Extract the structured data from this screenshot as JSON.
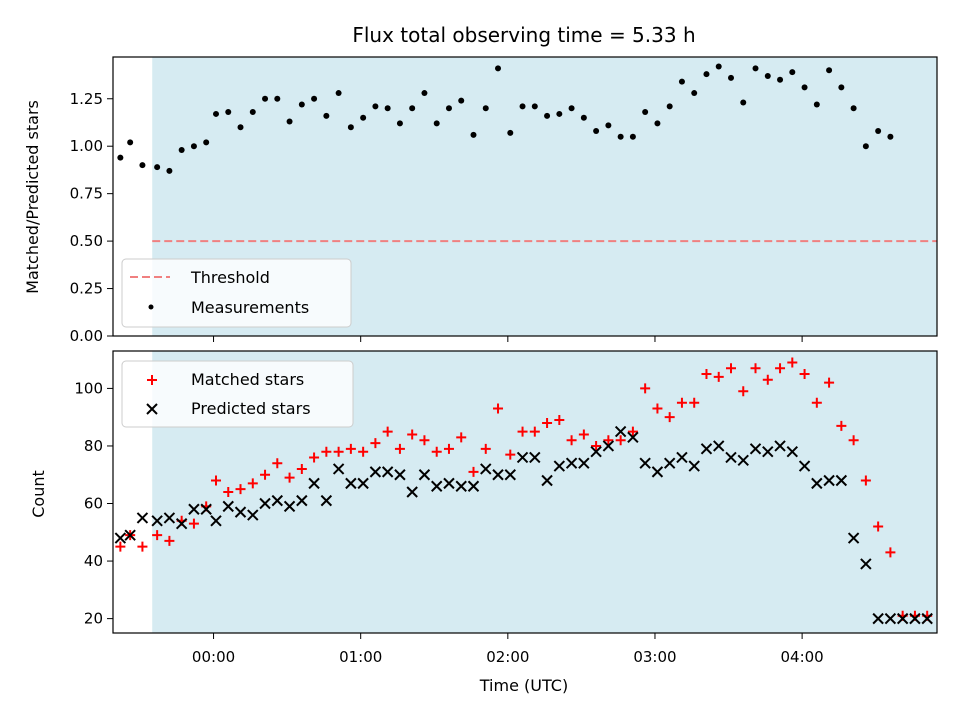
{
  "chart_data": [
    {
      "type": "scatter",
      "title": "Flux total observing time = 5.33 h",
      "xlabel": "",
      "ylabel": "Matched/Predicted stars",
      "ylim": [
        0,
        1.47
      ],
      "xlim": [
        -0.6833,
        4.9167
      ],
      "y_ticks": [
        0.0,
        0.25,
        0.5,
        0.75,
        1.0,
        1.25
      ],
      "y_tick_labels": [
        "0.00",
        "0.25",
        "0.50",
        "0.75",
        "1.00",
        "1.25"
      ],
      "observing_window": [
        -0.4167,
        4.9167
      ],
      "threshold": 0.5,
      "legend": [
        "Threshold",
        "Measurements"
      ],
      "legend_position": "lower-left",
      "colors": {
        "span": "#add8e6",
        "threshold": "#f08080",
        "points": "#000000"
      },
      "x": [
        -0.6333,
        -0.5667,
        -0.4833,
        -0.3833,
        -0.3,
        -0.2167,
        -0.1333,
        -0.05,
        0.0167,
        0.1,
        0.1833,
        0.2667,
        0.35,
        0.4333,
        0.5167,
        0.6,
        0.6833,
        0.7667,
        0.85,
        0.9333,
        1.0167,
        1.1,
        1.1833,
        1.2667,
        1.35,
        1.4333,
        1.5167,
        1.6,
        1.6833,
        1.7667,
        1.85,
        1.9333,
        2.0167,
        2.1,
        2.1833,
        2.2667,
        2.35,
        2.4333,
        2.5167,
        2.6,
        2.6833,
        2.7667,
        2.85,
        2.9333,
        3.0167,
        3.1,
        3.1833,
        3.2667,
        3.35,
        3.4333,
        3.5167,
        3.6,
        3.6833,
        3.7667,
        3.85,
        3.9333,
        4.0167,
        4.1,
        4.1833,
        4.2667,
        4.35,
        4.4333,
        4.5167,
        4.6
      ],
      "values": [
        0.94,
        1.02,
        0.9,
        0.89,
        0.87,
        0.98,
        1.0,
        1.02,
        1.17,
        1.18,
        1.1,
        1.18,
        1.25,
        1.25,
        1.13,
        1.22,
        1.25,
        1.16,
        1.28,
        1.1,
        1.15,
        1.21,
        1.2,
        1.12,
        1.2,
        1.28,
        1.12,
        1.2,
        1.24,
        1.06,
        1.2,
        1.41,
        1.07,
        1.21,
        1.21,
        1.16,
        1.17,
        1.2,
        1.15,
        1.08,
        1.11,
        1.05,
        1.05,
        1.18,
        1.12,
        1.21,
        1.34,
        1.28,
        1.38,
        1.42,
        1.36,
        1.23,
        1.41,
        1.37,
        1.35,
        1.39,
        1.31,
        1.22,
        1.4,
        1.31,
        1.2,
        1.0,
        1.08,
        1.05
      ]
    },
    {
      "type": "scatter",
      "title": "",
      "xlabel": "Time (UTC)",
      "ylabel": "Count",
      "ylim": [
        15,
        113
      ],
      "xlim": [
        -0.6833,
        4.9167
      ],
      "y_ticks": [
        20,
        40,
        60,
        80,
        100
      ],
      "y_tick_labels": [
        "20",
        "40",
        "60",
        "80",
        "100"
      ],
      "x_ticks": [
        0,
        1,
        2,
        3,
        4
      ],
      "x_tick_labels": [
        "00:00",
        "01:00",
        "02:00",
        "03:00",
        "04:00"
      ],
      "observing_window": [
        -0.4167,
        4.9167
      ],
      "legend_position": "upper-left",
      "series": [
        {
          "name": "Matched stars",
          "marker": "+",
          "color": "#ff0000",
          "x": [
            -0.6333,
            -0.5667,
            -0.4833,
            -0.3833,
            -0.3,
            -0.2167,
            -0.1333,
            -0.05,
            0.0167,
            0.1,
            0.1833,
            0.2667,
            0.35,
            0.4333,
            0.5167,
            0.6,
            0.6833,
            0.7667,
            0.85,
            0.9333,
            1.0167,
            1.1,
            1.1833,
            1.2667,
            1.35,
            1.4333,
            1.5167,
            1.6,
            1.6833,
            1.7667,
            1.85,
            1.9333,
            2.0167,
            2.1,
            2.1833,
            2.2667,
            2.35,
            2.4333,
            2.5167,
            2.6,
            2.6833,
            2.7667,
            2.85,
            2.9333,
            3.0167,
            3.1,
            3.1833,
            3.2667,
            3.35,
            3.4333,
            3.5167,
            3.6,
            3.6833,
            3.7667,
            3.85,
            3.9333,
            4.0167,
            4.1,
            4.1833,
            4.2667,
            4.35,
            4.4333,
            4.5167,
            4.6,
            4.6833,
            4.7667,
            4.85
          ],
          "values": [
            45,
            49,
            45,
            49,
            47,
            54,
            53,
            59,
            68,
            64,
            65,
            67,
            70,
            74,
            69,
            72,
            76,
            78,
            78,
            79,
            78,
            81,
            85,
            79,
            84,
            82,
            78,
            79,
            83,
            71,
            79,
            93,
            77,
            85,
            85,
            88,
            89,
            82,
            84,
            80,
            82,
            82,
            85,
            100,
            93,
            90,
            95,
            95,
            105,
            104,
            107,
            99,
            107,
            103,
            107,
            109,
            105,
            95,
            102,
            87,
            82,
            68,
            52,
            43,
            21,
            21,
            21
          ]
        },
        {
          "name": "Predicted stars",
          "marker": "x",
          "color": "#000000",
          "x": [
            -0.6333,
            -0.5667,
            -0.4833,
            -0.3833,
            -0.3,
            -0.2167,
            -0.1333,
            -0.05,
            0.0167,
            0.1,
            0.1833,
            0.2667,
            0.35,
            0.4333,
            0.5167,
            0.6,
            0.6833,
            0.7667,
            0.85,
            0.9333,
            1.0167,
            1.1,
            1.1833,
            1.2667,
            1.35,
            1.4333,
            1.5167,
            1.6,
            1.6833,
            1.7667,
            1.85,
            1.9333,
            2.0167,
            2.1,
            2.1833,
            2.2667,
            2.35,
            2.4333,
            2.5167,
            2.6,
            2.6833,
            2.7667,
            2.85,
            2.9333,
            3.0167,
            3.1,
            3.1833,
            3.2667,
            3.35,
            3.4333,
            3.5167,
            3.6,
            3.6833,
            3.7667,
            3.85,
            3.9333,
            4.0167,
            4.1,
            4.1833,
            4.2667,
            4.35,
            4.4333,
            4.5167,
            4.6,
            4.6833,
            4.7667,
            4.85
          ],
          "values": [
            48,
            49,
            55,
            54,
            55,
            53,
            58,
            58,
            54,
            59,
            57,
            56,
            60,
            61,
            59,
            61,
            67,
            61,
            72,
            67,
            67,
            71,
            71,
            70,
            64,
            70,
            66,
            67,
            66,
            66,
            72,
            70,
            70,
            76,
            76,
            68,
            73,
            74,
            74,
            78,
            80,
            85,
            83,
            74,
            71,
            74,
            76,
            73,
            79,
            80,
            76,
            75,
            79,
            78,
            80,
            78,
            73,
            67,
            68,
            68,
            48,
            39,
            20,
            20,
            20,
            20,
            20
          ]
        }
      ]
    }
  ]
}
